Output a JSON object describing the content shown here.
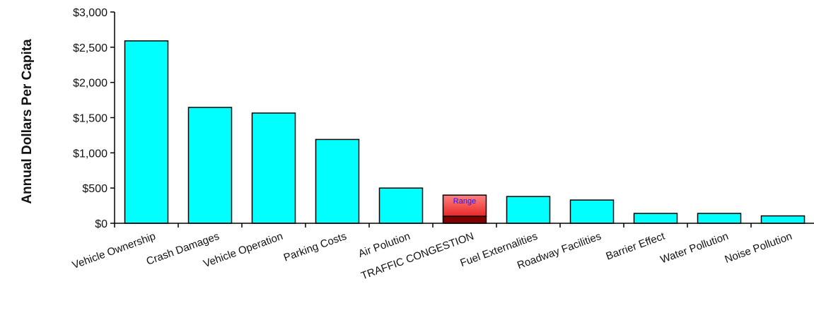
{
  "chart_data": {
    "type": "bar",
    "ylabel": "Annual Dollars Per Capita",
    "xlabel": "",
    "title": "",
    "ylim": [
      0,
      3000
    ],
    "yticks": [
      0,
      500,
      1000,
      1500,
      2000,
      2500,
      3000
    ],
    "ytick_labels": [
      "$0",
      "$500",
      "$1,000",
      "$1,500",
      "$2,000",
      "$2,500",
      "$3,000"
    ],
    "grid": false,
    "categories": [
      "Vehicle Ownership",
      "Crash Damages",
      "Vehicle Operation",
      "Parking Costs",
      "Air Polution",
      "TRAFFIC CONGESTION",
      "Fuel Externalities",
      "Roadway Facilities",
      "Barrier Effect",
      "Water Pollution",
      "Noise Pollution"
    ],
    "values": [
      2590,
      1645,
      1565,
      1190,
      500,
      100,
      380,
      330,
      140,
      140,
      105
    ],
    "highlight": {
      "category": "TRAFFIC CONGESTION",
      "low": 100,
      "high": 400,
      "label": "Range"
    },
    "colors": {
      "bar": "#00ffff",
      "bar_edge": "#000000",
      "range_light": "#ff8080",
      "range_dark": "#e82828",
      "range_base": "#800000",
      "range_text": "#1a1aff"
    }
  }
}
